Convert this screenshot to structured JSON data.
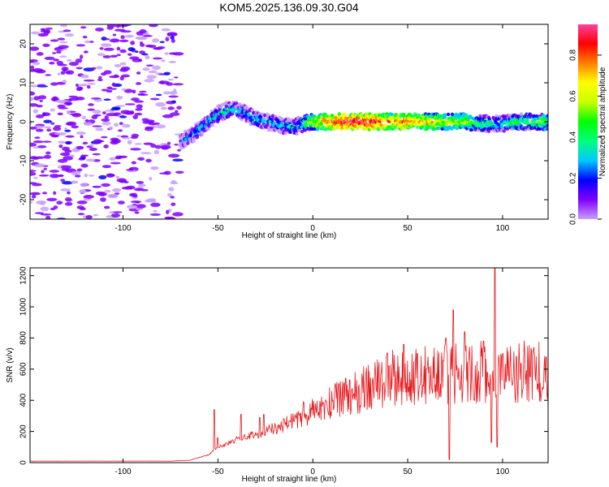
{
  "chart_data": [
    {
      "type": "heatmap",
      "title": "KOM5.2025.136.09.30.G04",
      "xlabel": "Height of straight line (km)",
      "ylabel": "Frequency (Hz)",
      "xlim": [
        -149,
        124
      ],
      "ylim": [
        -25,
        25
      ],
      "xticks": [
        -100,
        -50,
        0,
        50,
        100
      ],
      "yticks": [
        -20,
        -10,
        0,
        10,
        20
      ],
      "colorbar": {
        "label": "Normalized spectral amplitude",
        "range": [
          0,
          0.95
        ],
        "ticks": [
          0.0,
          0.2,
          0.4,
          0.6,
          0.8
        ],
        "colormap": [
          "#c8a0ff",
          "#8000ff",
          "#0000ff",
          "#00c8ff",
          "#00ff80",
          "#00ff00",
          "#c8ff00",
          "#ffff00",
          "#ff8000",
          "#ff0000",
          "#ff40a0"
        ]
      },
      "ridge": {
        "x": [
          -70,
          -65,
          -60,
          -55,
          -50,
          -45,
          -40,
          -35,
          -30,
          -25,
          -20,
          -15,
          -10,
          -5,
          0,
          10,
          20,
          30,
          40,
          50,
          60,
          70,
          80,
          90,
          100,
          110,
          124
        ],
        "y": [
          -5,
          -4,
          -2,
          0,
          2,
          3,
          3,
          2,
          0.5,
          0,
          -0.5,
          -1,
          -1.5,
          -0.5,
          0,
          0,
          0,
          0,
          0,
          0,
          0,
          0,
          0,
          -0.5,
          -0.5,
          0,
          0
        ],
        "amplitude": [
          0.2,
          0.25,
          0.3,
          0.3,
          0.35,
          0.35,
          0.3,
          0.3,
          0.3,
          0.3,
          0.3,
          0.3,
          0.3,
          0.4,
          0.6,
          0.8,
          0.9,
          0.9,
          0.75,
          0.75,
          0.7,
          0.6,
          0.55,
          0.4,
          0.35,
          0.45,
          0.5
        ]
      },
      "noise_region_x": [
        -149,
        -70
      ],
      "noise_amplitude": [
        0.0,
        0.15
      ]
    },
    {
      "type": "line",
      "xlabel": "Height of straight line (km)",
      "ylabel": "SNR (v/v)",
      "xlim": [
        -149,
        124
      ],
      "ylim": [
        0,
        1250
      ],
      "xticks": [
        -100,
        -50,
        0,
        50,
        100
      ],
      "yticks": [
        0,
        200,
        400,
        600,
        800,
        1000,
        1200
      ],
      "line_color": "#e8181c",
      "trend": {
        "x": [
          -149,
          -100,
          -75,
          -65,
          -55,
          -50,
          -45,
          -40,
          -30,
          -20,
          -10,
          0,
          10,
          20,
          30,
          40,
          50,
          60,
          70,
          80,
          90,
          100,
          110,
          124
        ],
        "y": [
          10,
          10,
          10,
          15,
          50,
          100,
          120,
          150,
          180,
          220,
          270,
          330,
          390,
          440,
          480,
          530,
          560,
          560,
          570,
          580,
          590,
          590,
          590,
          590
        ]
      },
      "spikes": {
        "x": [
          -52,
          -50,
          -38,
          -28,
          -26,
          -5,
          48,
          55,
          60,
          70,
          72,
          74,
          80,
          85,
          90,
          94,
          96,
          97,
          100
        ],
        "y": [
          340,
          160,
          310,
          290,
          310,
          390,
          760,
          700,
          600,
          800,
          20,
          980,
          840,
          400,
          780,
          130,
          1250,
          100,
          700
        ]
      },
      "noise_amplitude": [
        0.05,
        0.35
      ]
    }
  ]
}
